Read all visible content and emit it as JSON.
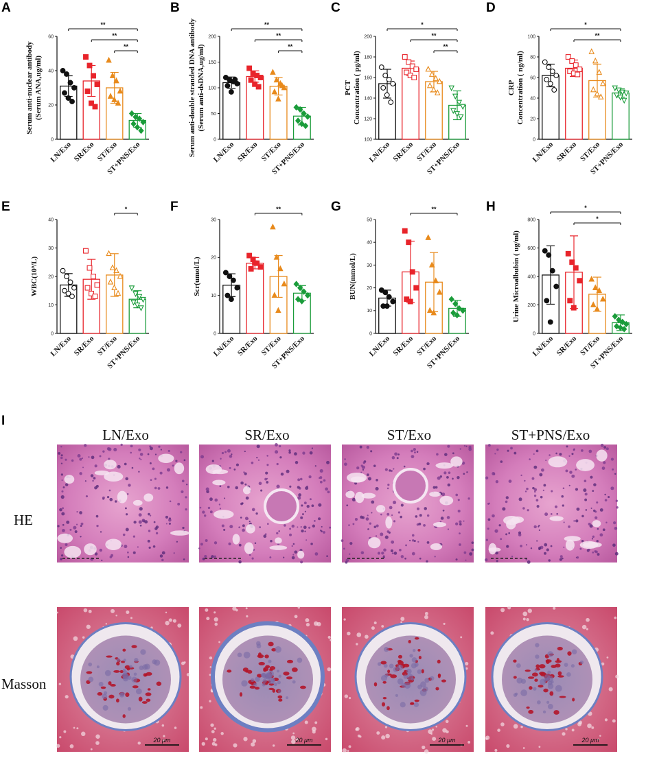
{
  "chart_data": [
    {
      "panel": "A",
      "type": "bar",
      "categories": [
        "LN/Exo",
        "SR/Exo",
        "ST/Exo",
        "ST+PNS/Exo"
      ],
      "ylabel": [
        "Serum anti-nuclear antibody",
        "(Serum ANA,ug/ml)"
      ],
      "ylim": [
        0,
        60
      ],
      "ticks": [
        0,
        20,
        40,
        60
      ],
      "means": [
        31,
        34,
        30,
        11
      ],
      "sd": [
        6,
        9,
        9,
        4
      ],
      "points": [
        [
          40,
          38,
          33,
          30,
          27,
          24,
          22
        ],
        [
          48,
          43,
          37,
          32,
          28,
          21,
          19
        ],
        [
          46,
          37,
          34,
          28,
          25,
          23,
          21
        ],
        [
          15,
          13,
          12,
          10,
          9,
          7,
          5
        ]
      ],
      "markers": [
        "circle",
        "square",
        "triangle",
        "diamond"
      ],
      "sig": [
        {
          "from": 0,
          "to": 3,
          "label": "**"
        },
        {
          "from": 1,
          "to": 3,
          "label": "**"
        },
        {
          "from": 2,
          "to": 3,
          "label": "**"
        }
      ]
    },
    {
      "panel": "B",
      "type": "bar",
      "categories": [
        "LN/Exo",
        "SR/Exo",
        "ST/Exo",
        "ST+PNS/Exo"
      ],
      "ylabel": [
        "Serum anti-double stranded DNA antibody",
        "(Serum anti-dsDNA,ug/ml)"
      ],
      "ylim": [
        0,
        200
      ],
      "ticks": [
        0,
        50,
        100,
        150,
        200
      ],
      "means": [
        110,
        122,
        103,
        45
      ],
      "sd": [
        11,
        11,
        17,
        17
      ],
      "points": [
        [
          120,
          115,
          112,
          108,
          104,
          92,
          116
        ],
        [
          138,
          128,
          124,
          120,
          115,
          107,
          102
        ],
        [
          130,
          115,
          108,
          100,
          92,
          78,
          104
        ],
        [
          62,
          58,
          50,
          44,
          36,
          30,
          26
        ]
      ],
      "markers": [
        "circle",
        "square",
        "triangle",
        "diamond"
      ],
      "sig": [
        {
          "from": 0,
          "to": 3,
          "label": "**"
        },
        {
          "from": 1,
          "to": 3,
          "label": "**"
        },
        {
          "from": 2,
          "to": 3,
          "label": "**"
        }
      ]
    },
    {
      "panel": "C",
      "type": "bar",
      "categories": [
        "LN/Exo",
        "SR/Exo",
        "ST/Exo",
        "ST+PNS/Exo"
      ],
      "ylabel": [
        "PCT",
        "Concentration ( pg/ml)"
      ],
      "ylim": [
        100,
        200
      ],
      "ticks": [
        100,
        120,
        140,
        160,
        180,
        200
      ],
      "means": [
        154,
        169,
        156,
        133
      ],
      "sd": [
        14,
        7,
        10,
        14
      ],
      "points": [
        [
          170,
          162,
          158,
          154,
          150,
          143,
          136
        ],
        [
          180,
          175,
          171,
          168,
          165,
          162,
          160
        ],
        [
          168,
          163,
          159,
          156,
          152,
          148,
          145
        ],
        [
          150,
          142,
          136,
          132,
          128,
          125,
          122
        ]
      ],
      "markers": [
        "circle-open",
        "square-open",
        "triangle-open",
        "triangle-down-open"
      ],
      "sig": [
        {
          "from": 0,
          "to": 3,
          "label": "*"
        },
        {
          "from": 1,
          "to": 3,
          "label": "**"
        },
        {
          "from": 2,
          "to": 3,
          "label": "**"
        }
      ]
    },
    {
      "panel": "D",
      "type": "bar",
      "categories": [
        "LN/Exo",
        "SR/Exo",
        "ST/Exo",
        "ST+PNS/Exo"
      ],
      "ylabel": [
        "CRP",
        "Concentration ( ng/ml)"
      ],
      "ylim": [
        0,
        100
      ],
      "ticks": [
        0,
        20,
        40,
        60,
        80,
        100
      ],
      "means": [
        62,
        69,
        57,
        45
      ],
      "sd": [
        11,
        8,
        16,
        4
      ],
      "points": [
        [
          75,
          70,
          66,
          62,
          58,
          54,
          48
        ],
        [
          80,
          76,
          72,
          68,
          66,
          64,
          63
        ],
        [
          85,
          76,
          65,
          54,
          48,
          44,
          41
        ],
        [
          50,
          48,
          46,
          45,
          43,
          41,
          38
        ]
      ],
      "markers": [
        "circle-open",
        "square-open",
        "triangle-open",
        "triangle-down-open"
      ],
      "sig": [
        {
          "from": 0,
          "to": 3,
          "label": "*"
        },
        {
          "from": 1,
          "to": 3,
          "label": "**"
        }
      ]
    },
    {
      "panel": "E",
      "type": "bar",
      "categories": [
        "LN/Exo",
        "SR/Exo",
        "ST/Exo",
        "ST+PNS/Exo"
      ],
      "ylabel": [
        "WBC(10⁹/L)"
      ],
      "ylim": [
        0,
        40
      ],
      "ticks": [
        0,
        10,
        20,
        30,
        40
      ],
      "means": [
        17,
        19,
        20.5,
        12
      ],
      "sd": [
        4,
        7,
        7.5,
        3
      ],
      "points": [
        [
          22,
          20,
          18,
          16,
          15,
          14,
          13
        ],
        [
          29,
          23,
          20,
          17,
          16,
          14,
          13
        ],
        [
          28,
          23,
          22,
          20,
          18,
          16,
          14
        ],
        [
          16,
          14,
          13,
          12,
          11,
          10,
          9
        ]
      ],
      "markers": [
        "circle-open",
        "square-open",
        "triangle-open",
        "triangle-down-open"
      ],
      "sig": [
        {
          "from": 2,
          "to": 3,
          "label": "*"
        }
      ]
    },
    {
      "panel": "F",
      "type": "bar",
      "categories": [
        "LN/Exo",
        "SR/Exo",
        "ST/Exo",
        "ST+PNS/Exo"
      ],
      "ylabel": [
        "Scr(umol/L)"
      ],
      "ylim": [
        0,
        30
      ],
      "ticks": [
        0,
        10,
        20,
        30
      ],
      "means": [
        12.7,
        18.5,
        15,
        10.6
      ],
      "sd": [
        3,
        1.5,
        5.5,
        2
      ],
      "points": [
        [
          16,
          15,
          14,
          12,
          10,
          9
        ],
        [
          20.5,
          19.5,
          18.5,
          17.5,
          17,
          18.5
        ],
        [
          28,
          20,
          17,
          13,
          10,
          6
        ],
        [
          13,
          12,
          11,
          10,
          9,
          8.5
        ]
      ],
      "markers": [
        "circle",
        "square",
        "triangle",
        "diamond"
      ],
      "sig": [
        {
          "from": 1,
          "to": 3,
          "label": "**"
        }
      ]
    },
    {
      "panel": "G",
      "type": "bar",
      "categories": [
        "LN/Exo",
        "SR/Exo",
        "ST/Exo",
        "ST+PNS/Exo"
      ],
      "ylabel": [
        "BUN(mmol/L)"
      ],
      "ylim": [
        0,
        50
      ],
      "ticks": [
        0,
        10,
        20,
        30,
        40,
        50
      ],
      "means": [
        15.5,
        27,
        22.5,
        11
      ],
      "sd": [
        3.5,
        13.5,
        13,
        3.5
      ],
      "points": [
        [
          19,
          18,
          16,
          14,
          12,
          12
        ],
        [
          45,
          40,
          27,
          20,
          15,
          14
        ],
        [
          42,
          30,
          23,
          18,
          10,
          9
        ],
        [
          15,
          13,
          11,
          10,
          9,
          8
        ]
      ],
      "markers": [
        "circle",
        "square",
        "triangle",
        "diamond"
      ],
      "sig": [
        {
          "from": 1,
          "to": 3,
          "label": "**"
        }
      ]
    },
    {
      "panel": "H",
      "type": "bar",
      "categories": [
        "LN/Exo",
        "SR/Exo",
        "ST/Exo",
        "ST+PNS/Exo"
      ],
      "ylabel": [
        "Urine Microalbubin ( ug/ml)"
      ],
      "ylim": [
        0,
        800
      ],
      "ticks": [
        0,
        200,
        400,
        600,
        800
      ],
      "means": [
        410,
        430,
        275,
        75
      ],
      "sd": [
        205,
        255,
        120,
        55
      ],
      "points": [
        [
          580,
          550,
          440,
          330,
          230,
          80
        ],
        [
          560,
          500,
          460,
          370,
          230,
          180
        ],
        [
          380,
          320,
          300,
          240,
          200,
          170
        ],
        [
          120,
          95,
          80,
          65,
          50,
          40,
          30
        ]
      ],
      "markers": [
        "circle",
        "square",
        "triangle",
        "diamond"
      ],
      "sig": [
        {
          "from": 0,
          "to": 3,
          "label": "*"
        },
        {
          "from": 1,
          "to": 3,
          "label": "*"
        }
      ]
    }
  ],
  "colors": [
    "#111111",
    "#e8242b",
    "#e88a1c",
    "#1a9c3a"
  ],
  "panel_letters": [
    "A",
    "B",
    "C",
    "D",
    "E",
    "F",
    "G",
    "H"
  ],
  "histology": {
    "panel_label": "I",
    "columns": [
      "LN/Exo",
      "SR/Exo",
      "ST/Exo",
      "ST+PNS/Exo"
    ],
    "rows": [
      "HE",
      "Masson"
    ],
    "scale_label": "20 μm"
  }
}
